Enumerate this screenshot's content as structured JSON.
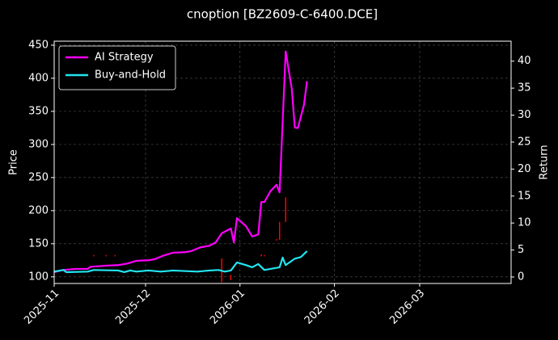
{
  "chart_data": {
    "type": "line",
    "title": "cnoption [BZ2609-C-6400.DCE]",
    "ylabel": "Price",
    "y2label": "Return",
    "xlim": [
      "2025-11-01",
      "2026-03-31"
    ],
    "xticks": [
      "2025-11",
      "2025-12",
      "2026-01",
      "2026-02",
      "2026-03"
    ],
    "ylim": [
      90,
      456
    ],
    "yticks": [
      100,
      150,
      200,
      250,
      300,
      350,
      400,
      450
    ],
    "y2lim": [
      -1.2,
      43.7
    ],
    "y2ticks": [
      0,
      5,
      10,
      15,
      20,
      25,
      30,
      35,
      40
    ],
    "grid": true,
    "legend": "upper left",
    "candles": {
      "color": "#ff0000",
      "x": [
        "2025-11-14",
        "2025-11-18",
        "2025-11-21",
        "2025-12-26",
        "2025-12-29",
        "2026-01-08",
        "2026-01-09",
        "2026-01-13",
        "2026-01-14",
        "2026-01-16"
      ],
      "low": [
        131,
        131,
        131,
        92,
        95,
        131,
        131,
        155,
        156,
        183
      ],
      "high": [
        133,
        133,
        133,
        128,
        103,
        134,
        133,
        157,
        183,
        220
      ]
    },
    "series": [
      {
        "name": "AI Strategy",
        "color": "#ff00ff",
        "axis": "y2",
        "x": [
          "2025-11-01",
          "2025-11-04",
          "2025-11-08",
          "2025-11-12",
          "2025-11-13",
          "2025-11-18",
          "2025-11-22",
          "2025-11-25",
          "2025-11-28",
          "2025-12-02",
          "2025-12-04",
          "2025-12-07",
          "2025-12-10",
          "2025-12-14",
          "2025-12-16",
          "2025-12-19",
          "2025-12-22",
          "2025-12-24",
          "2025-12-26",
          "2025-12-29",
          "2025-12-30",
          "2025-12-31",
          "2026-01-03",
          "2026-01-05",
          "2026-01-07",
          "2026-01-08",
          "2026-01-09",
          "2026-01-11",
          "2026-01-13",
          "2026-01-14",
          "2026-01-16",
          "2026-01-18",
          "2026-01-19",
          "2026-01-20",
          "2026-01-22",
          "2026-01-23"
        ],
        "values": [
          0.9,
          1.3,
          1.5,
          1.5,
          1.9,
          2.1,
          2.2,
          2.5,
          3.0,
          3.1,
          3.3,
          4.0,
          4.5,
          4.6,
          4.8,
          5.5,
          5.8,
          6.4,
          8.1,
          9.0,
          6.4,
          10.9,
          9.4,
          7.5,
          7.9,
          13.9,
          13.9,
          15.9,
          17.1,
          15.7,
          41.8,
          34.9,
          27.7,
          27.6,
          31.9,
          36.3
        ]
      },
      {
        "name": "Buy-and-Hold",
        "color": "#22e5f0",
        "axis": "y2",
        "x": [
          "2025-11-01",
          "2025-11-04",
          "2025-11-05",
          "2025-11-12",
          "2025-11-14",
          "2025-11-22",
          "2025-11-24",
          "2025-11-26",
          "2025-11-28",
          "2025-12-02",
          "2025-12-06",
          "2025-12-10",
          "2025-12-18",
          "2025-12-22",
          "2025-12-25",
          "2025-12-27",
          "2025-12-29",
          "2025-12-31",
          "2026-01-03",
          "2026-01-05",
          "2026-01-07",
          "2026-01-09",
          "2026-01-12",
          "2026-01-14",
          "2026-01-15",
          "2026-01-16",
          "2026-01-19",
          "2026-01-21",
          "2026-01-23"
        ],
        "values": [
          1.0,
          1.3,
          0.9,
          1.0,
          1.3,
          1.2,
          0.9,
          1.2,
          1.0,
          1.2,
          1.0,
          1.2,
          1.0,
          1.2,
          1.3,
          1.0,
          1.2,
          2.7,
          2.2,
          1.8,
          2.4,
          1.3,
          1.6,
          1.8,
          3.6,
          2.2,
          3.4,
          3.7,
          4.8
        ]
      }
    ]
  }
}
